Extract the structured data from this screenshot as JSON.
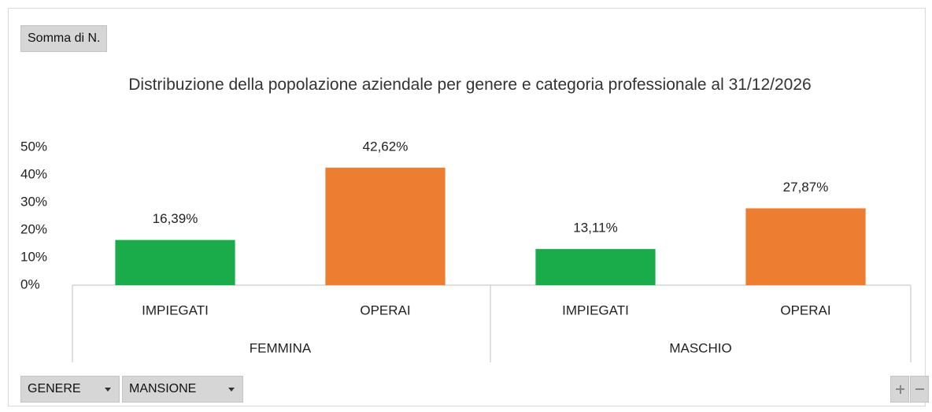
{
  "pivot_buttons": {
    "value_field": "Somma di N.",
    "fields": [
      "GENERE",
      "MANSIONE"
    ]
  },
  "chart_data": {
    "type": "bar",
    "title": "Distribuzione della popolazione aziendale per genere e categoria professionale al 31/12/2026",
    "categories": [
      "IMPIEGATI",
      "OPERAI",
      "IMPIEGATI",
      "OPERAI"
    ],
    "groups": [
      "FEMMINA",
      "MASCHIO"
    ],
    "values": [
      16.39,
      42.62,
      13.11,
      27.87
    ],
    "value_labels": [
      "16,39%",
      "42,62%",
      "13,11%",
      "27,87%"
    ],
    "colors": [
      "#1aab4b",
      "#ed7d31",
      "#1aab4b",
      "#ed7d31"
    ],
    "ylim": [
      0,
      50
    ],
    "yticks": [
      {
        "value": 0,
        "label": "0%"
      },
      {
        "value": 10,
        "label": "10%"
      },
      {
        "value": 20,
        "label": "20%"
      },
      {
        "value": 30,
        "label": "30%"
      },
      {
        "value": 40,
        "label": "40%"
      },
      {
        "value": 50,
        "label": "50%"
      }
    ],
    "grid": false
  }
}
